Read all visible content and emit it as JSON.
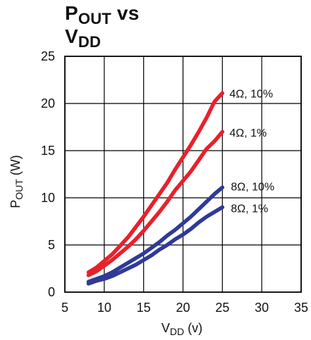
{
  "chart_data": {
    "type": "line",
    "title_parts": {
      "line1_main": "P",
      "line1_sub": "OUT",
      "line1_tail": " vs",
      "line2_main": "V",
      "line2_sub": "DD"
    },
    "xlabel_parts": {
      "main": "V",
      "sub": "DD",
      "unit": " (v)"
    },
    "ylabel_parts": {
      "main": "P",
      "sub": "OUT",
      "unit": " (W)"
    },
    "xlim": [
      5,
      35
    ],
    "ylim": [
      0,
      25
    ],
    "xticks": [
      5,
      10,
      15,
      20,
      25,
      30,
      35
    ],
    "yticks": [
      0,
      5,
      10,
      15,
      20,
      25
    ],
    "grid": true,
    "series": [
      {
        "name": "4Ω, 10%",
        "color": "#e8212b",
        "x": [
          8,
          9,
          10,
          11,
          12,
          13,
          14,
          15,
          16,
          17,
          18,
          19,
          20,
          21,
          22,
          23,
          24,
          25
        ],
        "y": [
          2.1,
          2.6,
          3.3,
          4.0,
          4.9,
          5.8,
          6.9,
          8.0,
          9.2,
          10.4,
          11.6,
          13.0,
          14.3,
          15.6,
          17.0,
          18.5,
          20.2,
          21.1
        ]
      },
      {
        "name": "4Ω, 1%",
        "color": "#e8212b",
        "x": [
          8,
          9,
          10,
          11,
          12,
          13,
          14,
          15,
          16,
          17,
          18,
          19,
          20,
          21,
          22,
          23,
          24,
          25
        ],
        "y": [
          1.8,
          2.2,
          2.8,
          3.4,
          4.1,
          4.8,
          5.6,
          6.5,
          7.5,
          8.5,
          9.6,
          10.8,
          11.8,
          12.8,
          14.0,
          15.2,
          16.0,
          17.0
        ]
      },
      {
        "name": "8Ω, 10%",
        "color": "#2e3a97",
        "x": [
          8,
          9,
          10,
          11,
          12,
          13,
          14,
          15,
          16,
          17,
          18,
          19,
          20,
          21,
          22,
          23,
          24,
          25
        ],
        "y": [
          1.1,
          1.4,
          1.7,
          2.1,
          2.6,
          3.1,
          3.6,
          4.1,
          4.7,
          5.3,
          6.0,
          6.6,
          7.3,
          8.0,
          8.8,
          9.6,
          10.4,
          11.1
        ]
      },
      {
        "name": "8Ω, 1%",
        "color": "#2e3a97",
        "x": [
          8,
          9,
          10,
          11,
          12,
          13,
          14,
          15,
          16,
          17,
          18,
          19,
          20,
          21,
          22,
          23,
          24,
          25
        ],
        "y": [
          0.9,
          1.2,
          1.4,
          1.7,
          2.1,
          2.5,
          2.9,
          3.4,
          3.9,
          4.5,
          5.0,
          5.6,
          6.1,
          6.7,
          7.4,
          8.0,
          8.5,
          9.0
        ]
      }
    ]
  }
}
